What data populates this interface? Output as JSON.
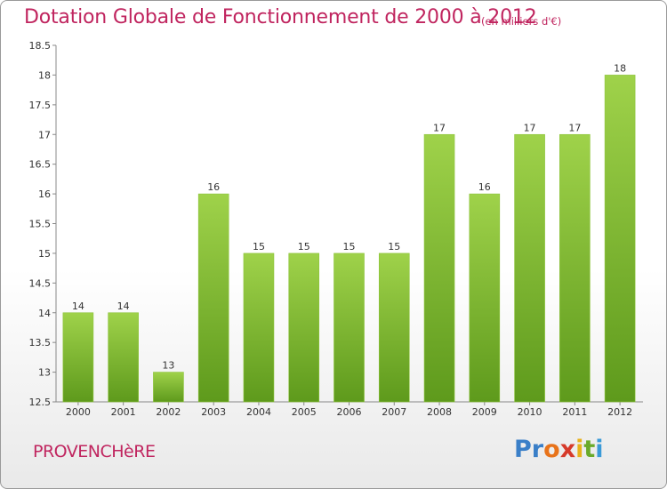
{
  "header": {
    "title": "Dotation Globale de Fonctionnement de 2000 à 2012",
    "subtitle": "(en milliers d'€)"
  },
  "footer": {
    "commune": "PROVENCHèRE",
    "logo_text": "Proxiti",
    "logo_colors": [
      "#3a7fc8",
      "#3a7fc8",
      "#e8731a",
      "#d63a2a",
      "#e8b21a",
      "#6aaa2a",
      "#3a9ad8"
    ]
  },
  "chart_data": {
    "type": "bar",
    "categories": [
      "2000",
      "2001",
      "2002",
      "2003",
      "2004",
      "2005",
      "2006",
      "2007",
      "2008",
      "2009",
      "2010",
      "2011",
      "2012"
    ],
    "values": [
      14,
      14,
      13,
      16,
      15,
      15,
      15,
      15,
      17,
      16,
      17,
      17,
      18
    ],
    "data_labels": [
      "14",
      "14",
      "13",
      "16",
      "15",
      "15",
      "15",
      "15",
      "17",
      "16",
      "17",
      "17",
      "18"
    ],
    "y_ticks": [
      "12.5",
      "13",
      "13.5",
      "14",
      "14.5",
      "15",
      "15.5",
      "16",
      "16.5",
      "17",
      "17.5",
      "18",
      "18.5"
    ],
    "ylim": [
      12.5,
      18.5
    ],
    "bar_color_top": "#9fd24a",
    "bar_color_bottom": "#5e9a1c",
    "grid": false,
    "legend": "none"
  }
}
